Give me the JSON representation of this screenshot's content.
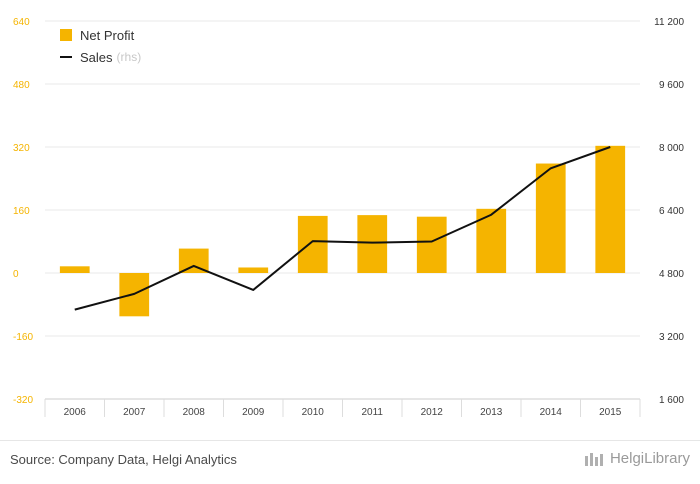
{
  "chart_data": {
    "type": "bar+line",
    "categories": [
      "2006",
      "2007",
      "2008",
      "2009",
      "2010",
      "2011",
      "2012",
      "2013",
      "2014",
      "2015"
    ],
    "series": [
      {
        "name": "Net Profit",
        "type": "bar",
        "axis": "left",
        "color": "#f5b400",
        "values": [
          17,
          -110,
          62,
          14,
          145,
          147,
          143,
          163,
          278,
          323
        ]
      },
      {
        "name": "Sales",
        "note": "(rhs)",
        "type": "line",
        "axis": "right",
        "color": "#111111",
        "values": [
          3870,
          4270,
          4980,
          4370,
          5610,
          5570,
          5600,
          6280,
          7460,
          8000
        ]
      }
    ],
    "y_left": {
      "min": -320,
      "max": 640,
      "ticks": [
        640,
        480,
        320,
        160,
        0,
        -160,
        -320
      ],
      "tick_labels": [
        "640",
        "480",
        "320",
        "160",
        "0",
        "-160",
        "-320"
      ],
      "color": "#f5b400"
    },
    "y_right": {
      "min": 1600,
      "max": 11200,
      "ticks": [
        11200,
        9600,
        8000,
        6400,
        4800,
        3200,
        1600
      ],
      "tick_labels": [
        "11 200",
        "9 600",
        "8 000",
        "6 400",
        "4 800",
        "3 200",
        "1 600"
      ],
      "color": "#333333"
    },
    "grid": true,
    "legend_position": "top-left"
  },
  "legend": {
    "bar_label": "Net Profit",
    "line_label": "Sales",
    "line_note": "(rhs)"
  },
  "footer": {
    "source": "Source: Company Data, Helgi Analytics",
    "brand": "HelgiLibrary"
  }
}
